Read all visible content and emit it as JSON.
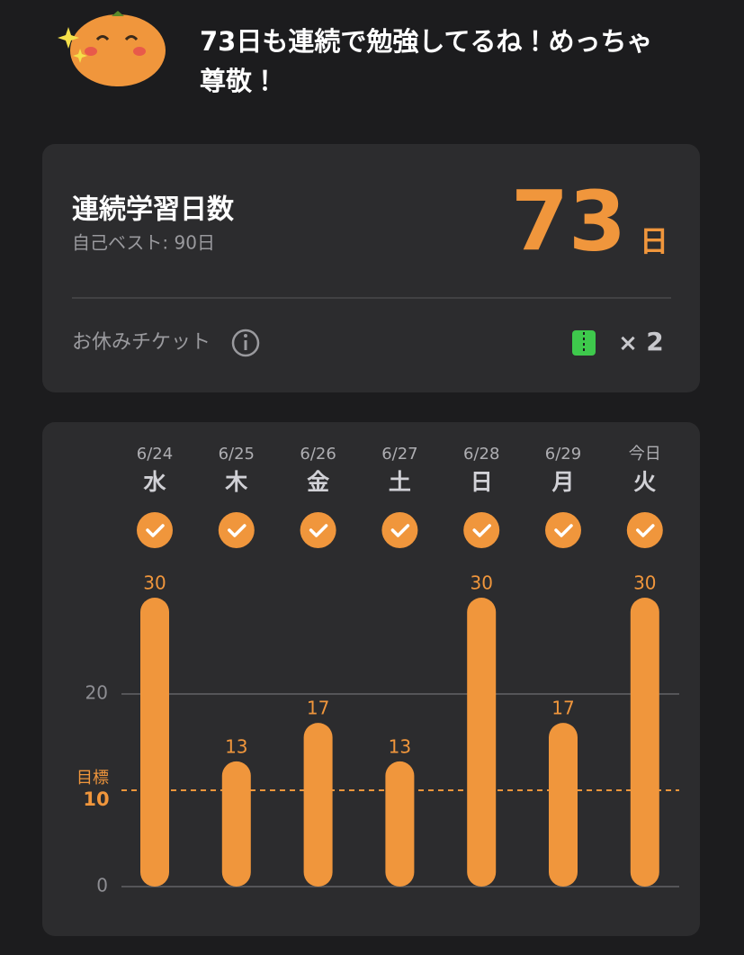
{
  "header": {
    "message": "73日も連続で勉強してるね！めっちゃ尊敬！"
  },
  "streak": {
    "title": "連続学習日数",
    "best": "自己ベスト: 90日",
    "count": 73,
    "unit": "日",
    "ticket_label": "お休みチケット",
    "ticket_multiplier": "×",
    "ticket_count": 2
  },
  "chart_data": {
    "type": "bar",
    "categories": [
      "6/24",
      "6/25",
      "6/26",
      "6/27",
      "6/28",
      "6/29",
      "今日"
    ],
    "weekdays": [
      "水",
      "木",
      "金",
      "土",
      "日",
      "月",
      "火"
    ],
    "values": [
      30,
      13,
      17,
      13,
      30,
      17,
      30
    ],
    "color": "#f0963c",
    "ylim": [
      0,
      30
    ],
    "yticks": [
      0,
      20
    ],
    "grid": true,
    "goal": {
      "label": "目標",
      "value": 10
    }
  }
}
